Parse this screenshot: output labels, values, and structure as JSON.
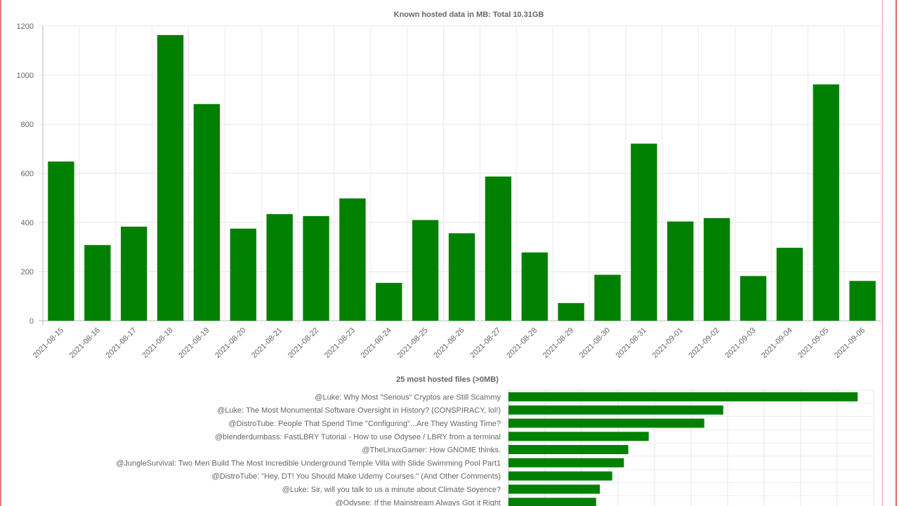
{
  "chart_data": [
    {
      "type": "bar",
      "title": "Known hosted data in MB: Total 10.31GB",
      "categories": [
        "2021-08-15",
        "2021-08-16",
        "2021-08-17",
        "2021-08-18",
        "2021-08-19",
        "2021-08-20",
        "2021-08-21",
        "2021-08-22",
        "2021-08-23",
        "2021-08-24",
        "2021-08-25",
        "2021-08-26",
        "2021-08-27",
        "2021-08-28",
        "2021-08-29",
        "2021-08-30",
        "2021-08-31",
        "2021-09-01",
        "2021-09-02",
        "2021-09-03",
        "2021-09-04",
        "2021-09-05",
        "2021-09-06"
      ],
      "values": [
        648,
        308,
        383,
        1163,
        882,
        375,
        434,
        426,
        498,
        154,
        410,
        356,
        587,
        278,
        72,
        187,
        721,
        404,
        418,
        182,
        297,
        962,
        162
      ],
      "ylim": [
        0,
        1200
      ],
      "yticks": [
        0,
        200,
        400,
        600,
        800,
        1000,
        1200
      ],
      "grid": true,
      "color": "#008000"
    },
    {
      "type": "bar",
      "orientation": "horizontal",
      "title": "25 most hosted files (>0MB)",
      "categories": [
        "@Luke: Why Most \"Serious\" Cryptos are Still Scammy",
        "@Luke: The Most Monumental Software Oversight in History? (CONSPIRACY, lol!)",
        "@DistroTube: People That Spend Time \"Configuring\"...Are They Wasting Time?",
        "@blenderdumbass: FastLBRY Tutorial - How to use Odysee / LBRY from a terminal",
        "@TheLinuxGamer: How GNOME thinks.",
        "@JungleSurvival: Two Men Build The Most Incredible Underground Temple Villa with Slide Swimming Pool Part1",
        "@DistroTube: \"Hey, DT! You Should Make Udemy Courses.\" (And Other Comments)",
        "@Luke: Sir, will you talk to us a minute about Climate Soyence?",
        "@Odysee: If the Mainstream Always Got it Right"
      ],
      "values": [
        478,
        294,
        268,
        192,
        164,
        158,
        142,
        125,
        120
      ],
      "xlim": [
        0,
        500
      ],
      "grid": true,
      "color": "#008000"
    }
  ]
}
